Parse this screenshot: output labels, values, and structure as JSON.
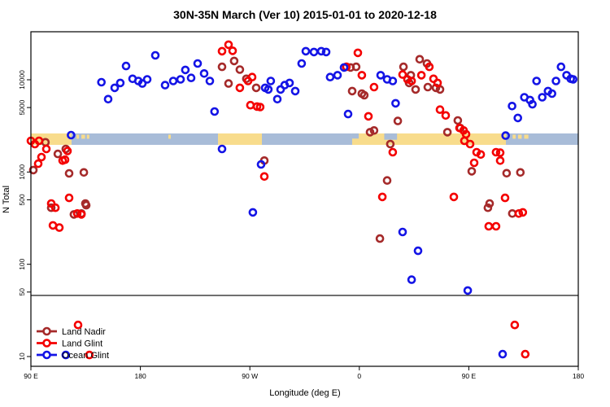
{
  "title": "30N-35N March (Ver 10)   2015-01-01 to 2020-12-18",
  "xlabel": "Longitude (deg E)",
  "ylabel": "N Total",
  "colors": {
    "land_nadir": "#A52A2A",
    "land_glint": "#F40000",
    "ocean_glint": "#1414E6",
    "band_land": "#F8DC8C",
    "band_ocean": "#A8BCD8",
    "axis": "#000000"
  },
  "legend": {
    "items": [
      {
        "label": "Land Nadir",
        "color": "#A52A2A"
      },
      {
        "label": "Land Glint",
        "color": "#F40000"
      },
      {
        "label": "Ocean Glint",
        "color": "#1414E6"
      }
    ]
  },
  "chart_data": {
    "type": "scatter",
    "x_axis": {
      "label": "Longitude (deg E)",
      "range": [
        90,
        540
      ],
      "note": "longitude axis wraps: 90E to 180, 90W, 0, 90E, 180",
      "ticks": [
        {
          "lon": 90,
          "label": "90 E"
        },
        {
          "lon": 180,
          "label": "180"
        },
        {
          "lon": 270,
          "label": "90 W"
        },
        {
          "lon": 360,
          "label": "0"
        },
        {
          "lon": 450,
          "label": "90 E"
        },
        {
          "lon": 540,
          "label": "180"
        }
      ]
    },
    "y_axis": {
      "label": "N Total",
      "scale": "log",
      "range": [
        9,
        33000
      ],
      "ticks": [
        {
          "v": 10000,
          "label": "10000"
        },
        {
          "v": 5000,
          "label": "5000"
        },
        {
          "v": 1000,
          "label": "1000"
        },
        {
          "v": 500,
          "label": "500"
        },
        {
          "v": 100,
          "label": "100"
        },
        {
          "v": 50,
          "label": "50"
        },
        {
          "v": 10,
          "label": "10"
        }
      ]
    },
    "divider_n": 46,
    "map_band": {
      "n_top": 2620,
      "n_bottom": 1970,
      "segments": [
        {
          "from": 90,
          "to": 123.4,
          "type": "land"
        },
        {
          "from": 123.4,
          "to": 243.8,
          "type": "ocean"
        },
        {
          "from": 243.8,
          "to": 279.9,
          "type": "land"
        },
        {
          "from": 279.9,
          "to": 354.1,
          "type": "ocean"
        },
        {
          "from": 354.1,
          "to": 480.5,
          "type": "land"
        },
        {
          "from": 480.5,
          "to": 540,
          "type": "ocean"
        }
      ],
      "islands": [
        {
          "from": 127.5,
          "to": 129.5
        },
        {
          "from": 131.5,
          "to": 134.5
        },
        {
          "from": 136,
          "to": 138
        },
        {
          "from": 203,
          "to": 205
        },
        {
          "from": 486,
          "to": 488.5
        },
        {
          "from": 490.5,
          "to": 493.5
        },
        {
          "from": 495.5,
          "to": 499
        }
      ],
      "inlets": [
        {
          "from": 354.1,
          "to": 359.5,
          "depth": 0.45
        },
        {
          "from": 380.5,
          "to": 391,
          "depth": 0.55
        }
      ]
    },
    "series": [
      {
        "name": "Land Nadir",
        "color": "#A52A2A",
        "points": [
          [
            92,
            1050
          ],
          [
            102,
            2100
          ],
          [
            112.1,
            1570
          ],
          [
            118.7,
            1780
          ],
          [
            121.4,
            966
          ],
          [
            133.5,
            990
          ],
          [
            106.7,
            410
          ],
          [
            125.4,
            347
          ],
          [
            131.5,
            355
          ],
          [
            134.8,
            456
          ],
          [
            135.5,
            437
          ],
          [
            247.1,
            13800
          ],
          [
            257.1,
            16000
          ],
          [
            261.8,
            12900
          ],
          [
            267.1,
            10250
          ],
          [
            252.5,
            9100
          ],
          [
            275.2,
            8180
          ],
          [
            281.9,
            1330
          ],
          [
            352.8,
            13600
          ],
          [
            357.4,
            13800
          ],
          [
            354.1,
            7540
          ],
          [
            362.1,
            7080
          ],
          [
            364.1,
            6800
          ],
          [
            368.8,
            2700
          ],
          [
            372.1,
            2820
          ],
          [
            391.6,
            3580
          ],
          [
            385.5,
            2010
          ],
          [
            382.9,
            810
          ],
          [
            376.9,
            190
          ],
          [
            396.3,
            13800
          ],
          [
            409.6,
            16700
          ],
          [
            415.6,
            15000
          ],
          [
            402.3,
            11200
          ],
          [
            400.9,
            9230
          ],
          [
            406.3,
            7850
          ],
          [
            416.3,
            8330
          ],
          [
            423,
            8180
          ],
          [
            426.3,
            7850
          ],
          [
            441,
            3620
          ],
          [
            443,
            3000
          ],
          [
            432.4,
            2700
          ],
          [
            452.4,
            1020
          ],
          [
            481.1,
            970
          ],
          [
            492.4,
            990
          ],
          [
            467.1,
            456
          ],
          [
            465.7,
            410
          ],
          [
            485.8,
            355
          ]
        ]
      },
      {
        "name": "Land Glint",
        "color": "#F40000",
        "points": [
          [
            90,
            2180
          ],
          [
            93.3,
            2010
          ],
          [
            96.7,
            2180
          ],
          [
            102.7,
            1780
          ],
          [
            98.7,
            1450
          ],
          [
            96,
            1230
          ],
          [
            116.1,
            1330
          ],
          [
            120.1,
            1690
          ],
          [
            118.1,
            1360
          ],
          [
            106.7,
            456
          ],
          [
            110.1,
            410
          ],
          [
            128.1,
            355
          ],
          [
            131.5,
            347
          ],
          [
            121.4,
            524
          ],
          [
            108.1,
            264
          ],
          [
            113.4,
            250
          ],
          [
            252.5,
            24000
          ],
          [
            247.1,
            20400
          ],
          [
            255.8,
            20600
          ],
          [
            271.9,
            10700
          ],
          [
            268.5,
            9700
          ],
          [
            261.8,
            8180
          ],
          [
            270.5,
            5310
          ],
          [
            275.9,
            5130
          ],
          [
            278.5,
            5060
          ],
          [
            281.9,
            895
          ],
          [
            358.8,
            19600
          ],
          [
            349.4,
            13800
          ],
          [
            362.1,
            11200
          ],
          [
            372.1,
            8330
          ],
          [
            367.5,
            4020
          ],
          [
            378.9,
            537
          ],
          [
            387.5,
            1640
          ],
          [
            395.6,
            11400
          ],
          [
            399.6,
            10100
          ],
          [
            403,
            9700
          ],
          [
            411,
            11200
          ],
          [
            417.6,
            13800
          ],
          [
            421,
            10250
          ],
          [
            424.3,
            9230
          ],
          [
            426.3,
            4740
          ],
          [
            431,
            4110
          ],
          [
            442.4,
            3000
          ],
          [
            445.7,
            2820
          ],
          [
            447.7,
            2570
          ],
          [
            446.4,
            2180
          ],
          [
            451.1,
            2010
          ],
          [
            456.4,
            1640
          ],
          [
            459.8,
            1550
          ],
          [
            454.4,
            1260
          ],
          [
            472.4,
            1640
          ],
          [
            475.8,
            1620
          ],
          [
            475.8,
            1330
          ],
          [
            437.7,
            537
          ],
          [
            479.8,
            524
          ],
          [
            466.4,
            258
          ],
          [
            472.4,
            258
          ],
          [
            491.1,
            355
          ],
          [
            494.4,
            365
          ],
          [
            487.8,
            22
          ],
          [
            496.4,
            10.6
          ],
          [
            128.8,
            22
          ],
          [
            138.1,
            10.4
          ]
        ]
      },
      {
        "name": "Ocean Glint",
        "color": "#1414E6",
        "points": [
          [
            123,
            2510
          ],
          [
            148,
            9400
          ],
          [
            153.5,
            6170
          ],
          [
            158.9,
            8180
          ],
          [
            163.5,
            9230
          ],
          [
            168.2,
            14100
          ],
          [
            173.6,
            10250
          ],
          [
            178.3,
            9700
          ],
          [
            181.6,
            9100
          ],
          [
            185.6,
            10100
          ],
          [
            192.3,
            18400
          ],
          [
            200.3,
            8740
          ],
          [
            207,
            9700
          ],
          [
            213,
            10100
          ],
          [
            217,
            12800
          ],
          [
            221.7,
            10480
          ],
          [
            227.1,
            15000
          ],
          [
            232.4,
            11700
          ],
          [
            237.1,
            9700
          ],
          [
            241,
            4530
          ],
          [
            247.1,
            1780
          ],
          [
            279.2,
            1210
          ],
          [
            282.6,
            8180
          ],
          [
            285.2,
            7850
          ],
          [
            287.2,
            9700
          ],
          [
            292.6,
            6170
          ],
          [
            295.3,
            7850
          ],
          [
            298.6,
            8740
          ],
          [
            302.6,
            9230
          ],
          [
            307.3,
            7540
          ],
          [
            312.6,
            15000
          ],
          [
            316,
            20400
          ],
          [
            322.7,
            20000
          ],
          [
            328.7,
            20400
          ],
          [
            332.7,
            20000
          ],
          [
            336,
            10700
          ],
          [
            342.1,
            11200
          ],
          [
            347.4,
            13600
          ],
          [
            350.8,
            4250
          ],
          [
            377.5,
            11200
          ],
          [
            382.9,
            10100
          ],
          [
            387.5,
            9700
          ],
          [
            389.8,
            5560
          ],
          [
            480.3,
            2480
          ],
          [
            485.6,
            5190
          ],
          [
            490.3,
            3860
          ],
          [
            495.7,
            6460
          ],
          [
            500.3,
            6030
          ],
          [
            502.3,
            5420
          ],
          [
            505.7,
            9700
          ],
          [
            510.4,
            6460
          ],
          [
            515.1,
            7540
          ],
          [
            518.4,
            7080
          ],
          [
            521.7,
            9700
          ],
          [
            525.8,
            13800
          ],
          [
            530.4,
            11200
          ],
          [
            533.8,
            10250
          ],
          [
            535.8,
            10100
          ],
          [
            272.5,
            365
          ],
          [
            395.6,
            224
          ],
          [
            408.3,
            140
          ],
          [
            403,
            68
          ],
          [
            449.1,
            52
          ],
          [
            477.8,
            10.6
          ],
          [
            118.7,
            10.4
          ]
        ]
      }
    ]
  }
}
